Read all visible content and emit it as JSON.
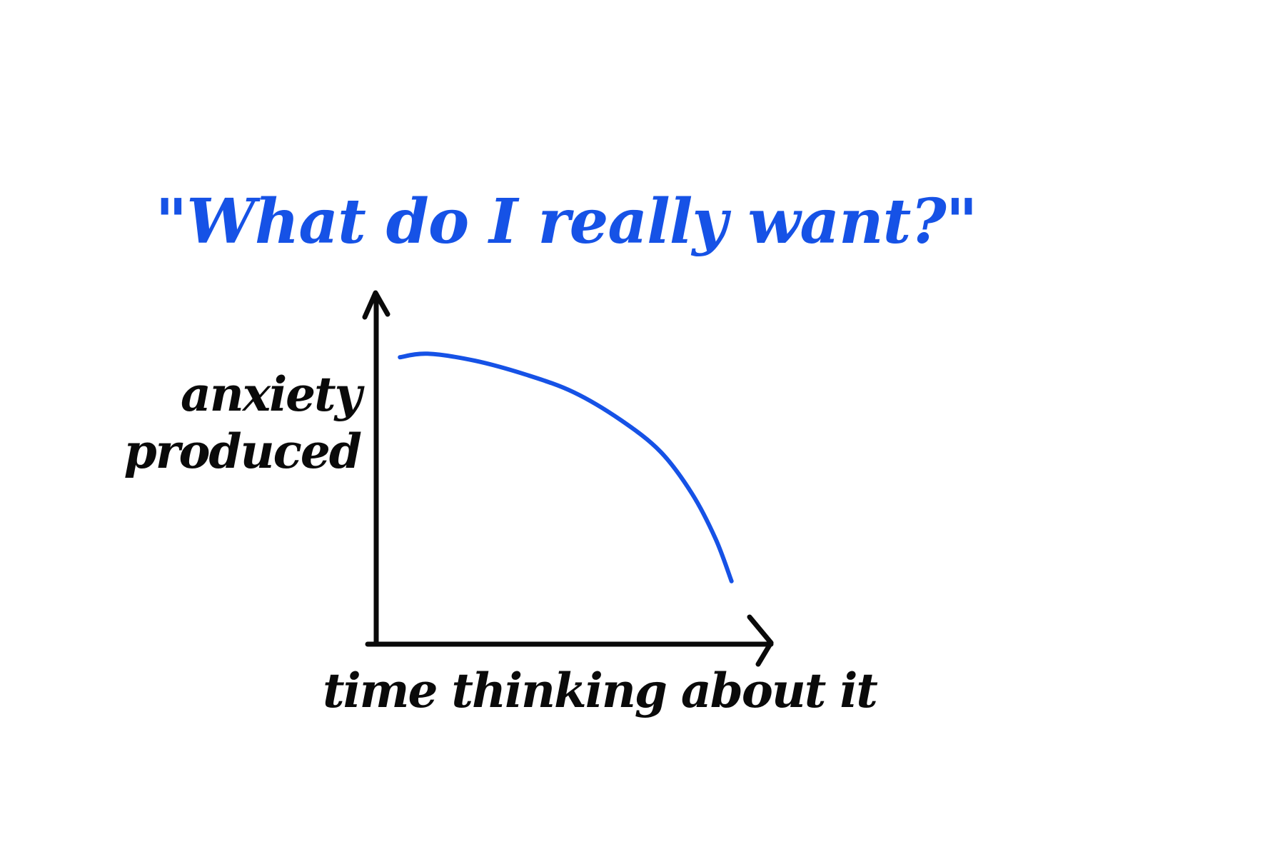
{
  "colors": {
    "ink": "#0a0a0a",
    "accent": "#1652e6",
    "background": "#ffffff"
  },
  "chart_data": {
    "type": "line",
    "title": "\"What do I really want?\"",
    "xlabel": "time thinking about it",
    "ylabel_lines": [
      "anxiety",
      "produced"
    ],
    "x_ticks": [],
    "y_ticks": [],
    "grid": false,
    "legend": "none",
    "xlim": [
      0,
      1
    ],
    "ylim": [
      0,
      1
    ],
    "series": [
      {
        "color": "#1652e6",
        "x": [
          0.06,
          0.13,
          0.25,
          0.38,
          0.5,
          0.62,
          0.72,
          0.8,
          0.86,
          0.9
        ],
        "y": [
          0.82,
          0.83,
          0.81,
          0.77,
          0.72,
          0.64,
          0.55,
          0.43,
          0.3,
          0.18
        ]
      }
    ]
  }
}
